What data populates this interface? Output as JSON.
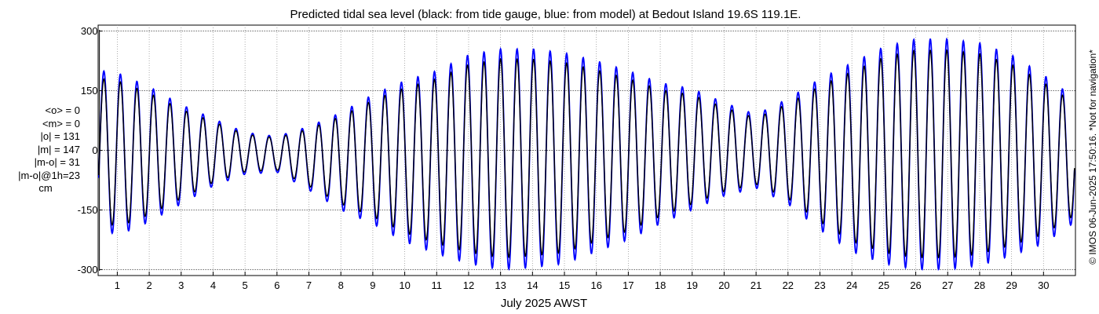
{
  "chart_data": {
    "type": "line",
    "title": "Predicted tidal sea level (black: from tide gauge, blue: from model) at Bedout Island 19.6S 119.1E.",
    "xlabel": "July 2025 AWST",
    "ylabel": "",
    "x_ticks": [
      "1",
      "2",
      "3",
      "4",
      "5",
      "6",
      "7",
      "8",
      "9",
      "10",
      "11",
      "12",
      "13",
      "14",
      "15",
      "16",
      "17",
      "18",
      "19",
      "20",
      "21",
      "22",
      "23",
      "24",
      "25",
      "26",
      "27",
      "28",
      "29",
      "30"
    ],
    "y_ticks": [
      "300",
      "150",
      "0",
      "-150",
      "-300"
    ],
    "xlim": [
      0.4,
      31.0
    ],
    "ylim": [
      -315,
      315
    ],
    "grid": true,
    "series": [
      {
        "name": "from tide gauge",
        "color": "#000000"
      },
      {
        "name": "from model",
        "color": "#0000ff"
      }
    ],
    "envelope": {
      "day": [
        0.5,
        1,
        2,
        3,
        4,
        5,
        6,
        7,
        8,
        9,
        10,
        11,
        12,
        13,
        14,
        15,
        16,
        17,
        18,
        19,
        20,
        21,
        22,
        23,
        24,
        25,
        26,
        27,
        28,
        29,
        30,
        31
      ],
      "high": [
        200,
        195,
        160,
        115,
        80,
        45,
        35,
        60,
        95,
        140,
        175,
        200,
        240,
        255,
        255,
        245,
        225,
        200,
        170,
        155,
        120,
        90,
        130,
        180,
        220,
        260,
        280,
        280,
        270,
        240,
        190,
        130
      ],
      "low": [
        -195,
        -215,
        -180,
        -135,
        -90,
        -60,
        -55,
        -100,
        -150,
        -185,
        -230,
        -260,
        -285,
        -300,
        -295,
        -285,
        -255,
        -225,
        -185,
        -150,
        -115,
        -95,
        -135,
        -200,
        -255,
        -285,
        -300,
        -300,
        -290,
        -265,
        -235,
        -180
      ],
      "gauge_ratio": 0.9
    },
    "stats": {
      "mean_obs": "<o> = 0",
      "mean_model": "<m> = 0",
      "abs_obs": "|o| = 131",
      "abs_model": "|m| = 147",
      "abs_diff": "|m-o| = 31",
      "abs_diff_1h": "|m-o|@1h=23",
      "unit": "cm"
    },
    "credit": "© IMOS 06-Jun-2025 17:50:16. *Not for navigation*"
  }
}
